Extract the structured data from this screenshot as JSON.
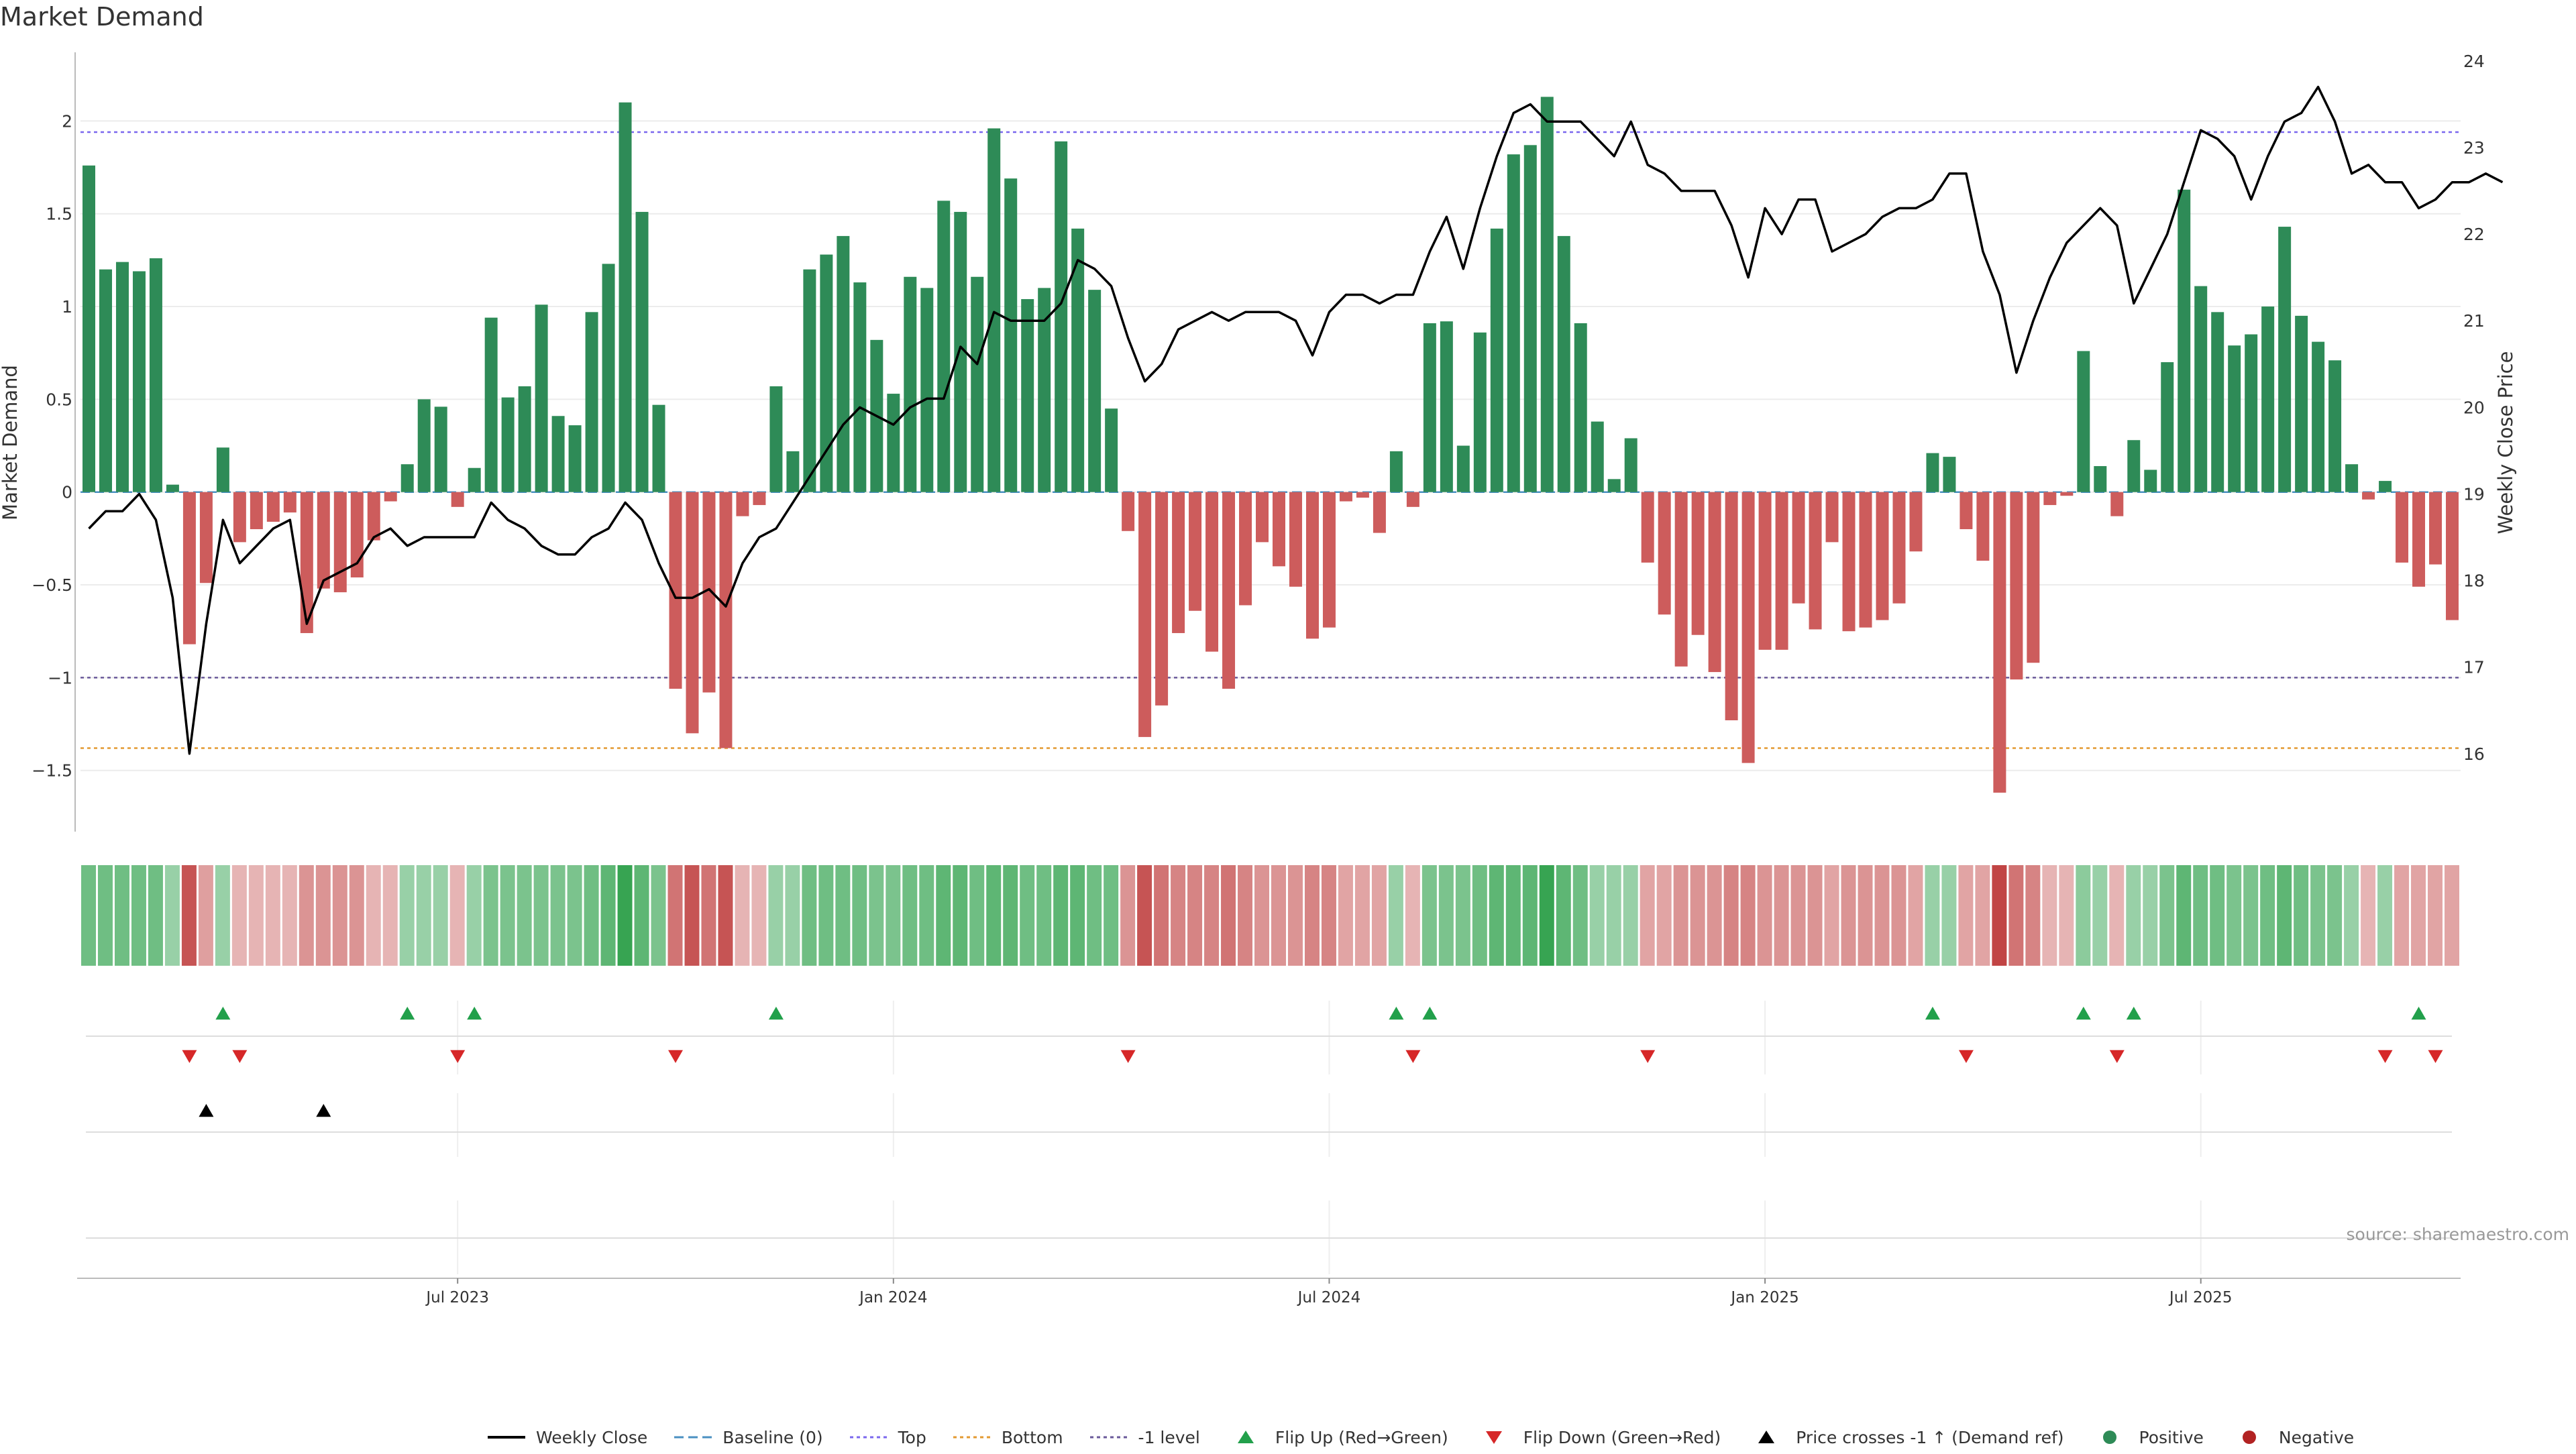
{
  "title": "Market Demand",
  "source_label": "source: sharemaestro.com",
  "colors": {
    "positive": "#2e8b57",
    "negative": "#cd5c5c",
    "line": "#000000",
    "top": "#7b68ee",
    "bottom": "#e39a32",
    "minus1": "#6a5a9a",
    "baseline": "#4a90c2",
    "flip_up": "#22a04b",
    "flip_down": "#d62728"
  },
  "legend": [
    {
      "label": "Weekly Close",
      "kind": "line",
      "color": "#000000"
    },
    {
      "label": "Baseline (0)",
      "kind": "dash",
      "color": "#4a90c2"
    },
    {
      "label": "Top",
      "kind": "dot",
      "color": "#7b68ee"
    },
    {
      "label": "Bottom",
      "kind": "dot",
      "color": "#e39a32"
    },
    {
      "label": "-1 level",
      "kind": "dot",
      "color": "#6a5a9a"
    },
    {
      "label": "Flip Up (Red→Green)",
      "kind": "tri-up",
      "color": "#22a04b"
    },
    {
      "label": "Flip Down (Green→Red)",
      "kind": "tri-down",
      "color": "#d62728"
    },
    {
      "label": "Price crosses -1 ↑ (Demand ref)",
      "kind": "tri-up",
      "color": "#000000"
    },
    {
      "label": "Positive",
      "kind": "circle",
      "color": "#2e8b57"
    },
    {
      "label": "Negative",
      "kind": "circle",
      "color": "#b22222"
    }
  ],
  "chart_data": {
    "type": "bar",
    "title": "Market Demand",
    "xlabel": "",
    "ylabel": "Market Demand",
    "y2label": "Weekly Close Price",
    "x_tick_labels": [
      {
        "label": "Jul 2023",
        "index": 22
      },
      {
        "label": "Jan 2024",
        "index": 48
      },
      {
        "label": "Jul 2024",
        "index": 74
      },
      {
        "label": "Jan 2025",
        "index": 100
      },
      {
        "label": "Jul 2025",
        "index": 126
      }
    ],
    "ylim": [
      -1.83,
      2.37
    ],
    "y_ticks": [
      -1.5,
      -1,
      -0.5,
      0,
      0.5,
      1,
      1.5,
      2
    ],
    "y_tick_labels": [
      "−1.5",
      "−1",
      "−0.5",
      "0",
      "0.5",
      "1",
      "1.5",
      "2"
    ],
    "y2lim": [
      15.1,
      24.1
    ],
    "y2_ticks": [
      16,
      17,
      18,
      19,
      20,
      21,
      22,
      23,
      24
    ],
    "levels": {
      "top": 1.94,
      "bottom": -1.38,
      "minus1": -1.0,
      "baseline": 0
    },
    "demand": [
      1.76,
      1.2,
      1.24,
      1.19,
      1.26,
      0.04,
      -0.82,
      -0.49,
      0.24,
      -0.27,
      -0.2,
      -0.16,
      -0.11,
      -0.76,
      -0.52,
      -0.54,
      -0.46,
      -0.26,
      -0.05,
      0.15,
      0.5,
      0.46,
      -0.08,
      0.13,
      0.94,
      0.51,
      0.57,
      1.01,
      0.41,
      0.36,
      0.97,
      1.23,
      2.1,
      1.51,
      0.47,
      -1.06,
      -1.3,
      -1.08,
      -1.38,
      -0.13,
      -0.07,
      0.57,
      0.22,
      1.2,
      1.28,
      1.38,
      1.13,
      0.82,
      0.53,
      1.16,
      1.1,
      1.57,
      1.51,
      1.16,
      1.96,
      1.69,
      1.04,
      1.1,
      1.89,
      1.42,
      1.09,
      0.45,
      -0.21,
      -1.32,
      -1.15,
      -0.76,
      -0.64,
      -0.86,
      -1.06,
      -0.61,
      -0.27,
      -0.4,
      -0.51,
      -0.79,
      -0.73,
      -0.05,
      -0.03,
      -0.22,
      0.22,
      -0.08,
      0.91,
      0.92,
      0.25,
      0.86,
      1.42,
      1.82,
      1.87,
      2.13,
      1.38,
      0.91,
      0.38,
      0.07,
      0.29,
      -0.38,
      -0.66,
      -0.94,
      -0.77,
      -0.97,
      -1.23,
      -1.46,
      -0.85,
      -0.85,
      -0.6,
      -0.74,
      -0.27,
      -0.75,
      -0.73,
      -0.69,
      -0.6,
      -0.32,
      0.21,
      0.19,
      -0.2,
      -0.37,
      -1.62,
      -1.01,
      -0.92,
      -0.07,
      -0.02,
      0.76,
      0.14,
      -0.13,
      0.28,
      0.12,
      0.7,
      1.63,
      1.11,
      0.97,
      0.79,
      0.85,
      1.0,
      1.43,
      0.95,
      0.81,
      0.71,
      0.15,
      -0.04,
      0.06,
      -0.38,
      -0.51,
      -0.39,
      -0.69
    ],
    "weekly_close": [
      18.6,
      18.8,
      18.8,
      19.0,
      18.7,
      17.8,
      16.0,
      17.5,
      18.7,
      18.2,
      18.4,
      18.6,
      18.7,
      17.5,
      18.0,
      18.1,
      18.2,
      18.5,
      18.6,
      18.4,
      18.5,
      18.5,
      18.5,
      18.5,
      18.9,
      18.7,
      18.6,
      18.4,
      18.3,
      18.3,
      18.5,
      18.6,
      18.9,
      18.7,
      18.2,
      17.8,
      17.8,
      17.9,
      17.7,
      18.2,
      18.5,
      18.6,
      18.9,
      19.2,
      19.5,
      19.8,
      20.0,
      19.9,
      19.8,
      20.0,
      20.1,
      20.1,
      20.7,
      20.5,
      21.1,
      21.0,
      21.0,
      21.0,
      21.2,
      21.7,
      21.6,
      21.4,
      20.8,
      20.3,
      20.5,
      20.9,
      21.0,
      21.1,
      21.0,
      21.1,
      21.1,
      21.1,
      21.0,
      20.6,
      21.1,
      21.3,
      21.3,
      21.2,
      21.3,
      21.3,
      21.8,
      22.2,
      21.6,
      22.3,
      22.9,
      23.4,
      23.5,
      23.3,
      23.3,
      23.3,
      23.1,
      22.9,
      23.3,
      22.8,
      22.7,
      22.5,
      22.5,
      22.5,
      22.1,
      21.5,
      22.3,
      22.0,
      22.4,
      22.4,
      21.8,
      21.9,
      22.0,
      22.2,
      22.3,
      22.3,
      22.4,
      22.7,
      22.7,
      21.8,
      21.3,
      20.4,
      21.0,
      21.5,
      21.9,
      22.1,
      22.3,
      22.1,
      21.2,
      21.6,
      22.0,
      22.6,
      23.2,
      23.1,
      22.9,
      22.4,
      22.9,
      23.3,
      23.4,
      23.7,
      23.3,
      22.7,
      22.8,
      22.6,
      22.6,
      22.3,
      22.4,
      22.6,
      22.6,
      22.7,
      22.6
    ],
    "heat_values": [
      0.62,
      0.62,
      0.62,
      0.62,
      0.62,
      0.38,
      -0.85,
      -0.38,
      0.38,
      -0.25,
      -0.25,
      -0.25,
      -0.25,
      -0.45,
      -0.45,
      -0.45,
      -0.45,
      -0.25,
      -0.25,
      0.38,
      0.38,
      0.38,
      -0.25,
      0.38,
      0.55,
      0.55,
      0.55,
      0.55,
      0.55,
      0.55,
      0.62,
      0.72,
      0.95,
      0.72,
      0.55,
      -0.65,
      -0.85,
      -0.65,
      -0.85,
      -0.25,
      -0.25,
      0.38,
      0.38,
      0.62,
      0.62,
      0.62,
      0.62,
      0.55,
      0.55,
      0.62,
      0.62,
      0.72,
      0.72,
      0.62,
      0.72,
      0.72,
      0.62,
      0.62,
      0.72,
      0.72,
      0.62,
      0.62,
      -0.45,
      -0.85,
      -0.65,
      -0.55,
      -0.55,
      -0.55,
      -0.65,
      -0.55,
      -0.45,
      -0.45,
      -0.45,
      -0.55,
      -0.55,
      -0.35,
      -0.35,
      -0.35,
      0.38,
      -0.25,
      0.55,
      0.55,
      0.55,
      0.62,
      0.72,
      0.72,
      0.72,
      0.95,
      0.72,
      0.62,
      0.38,
      0.38,
      0.38,
      -0.35,
      -0.35,
      -0.45,
      -0.45,
      -0.45,
      -0.55,
      -0.55,
      -0.45,
      -0.45,
      -0.45,
      -0.45,
      -0.35,
      -0.45,
      -0.45,
      -0.45,
      -0.45,
      -0.35,
      0.38,
      0.38,
      -0.35,
      -0.35,
      -0.95,
      -0.65,
      -0.55,
      -0.25,
      -0.25,
      0.45,
      0.38,
      -0.25,
      0.38,
      0.38,
      0.55,
      0.72,
      0.62,
      0.62,
      0.55,
      0.55,
      0.62,
      0.72,
      0.62,
      0.55,
      0.55,
      0.38,
      -0.25,
      0.38,
      -0.35,
      -0.35,
      -0.35,
      -0.35
    ],
    "flip_up_indices": [
      8,
      19,
      23,
      41,
      78,
      80,
      110,
      119,
      122,
      139
    ],
    "flip_down_indices": [
      6,
      9,
      22,
      35,
      62,
      79,
      93,
      112,
      121,
      137,
      140
    ],
    "price_cross_up_indices": [
      7,
      14
    ]
  }
}
